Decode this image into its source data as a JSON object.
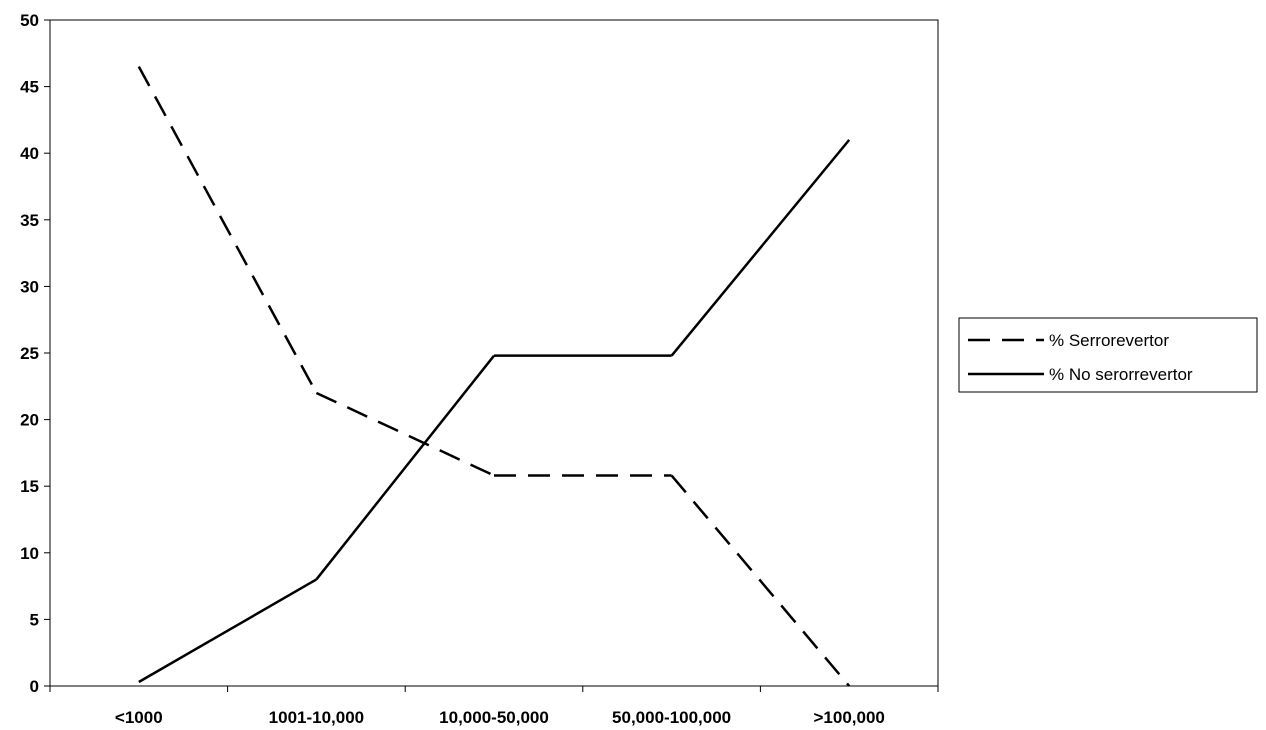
{
  "chart_data": {
    "type": "line",
    "title": "",
    "xlabel": "",
    "ylabel": "",
    "categories": [
      "<1000",
      "1001-10,000",
      "10,000-50,000",
      "50,000-100,000",
      ">100,000"
    ],
    "ylim": [
      0,
      50
    ],
    "yticks": [
      0,
      5,
      10,
      15,
      20,
      25,
      30,
      35,
      40,
      45,
      50
    ],
    "grid": false,
    "legend": "right",
    "series": [
      {
        "name": "% Serrorevertor",
        "values": [
          46.5,
          22,
          15.8,
          15.8,
          0
        ],
        "style": "dashed",
        "color": "#000000"
      },
      {
        "name": "% No serorrevertor",
        "values": [
          0.3,
          8,
          24.8,
          24.8,
          41
        ],
        "style": "solid",
        "color": "#000000"
      }
    ]
  }
}
